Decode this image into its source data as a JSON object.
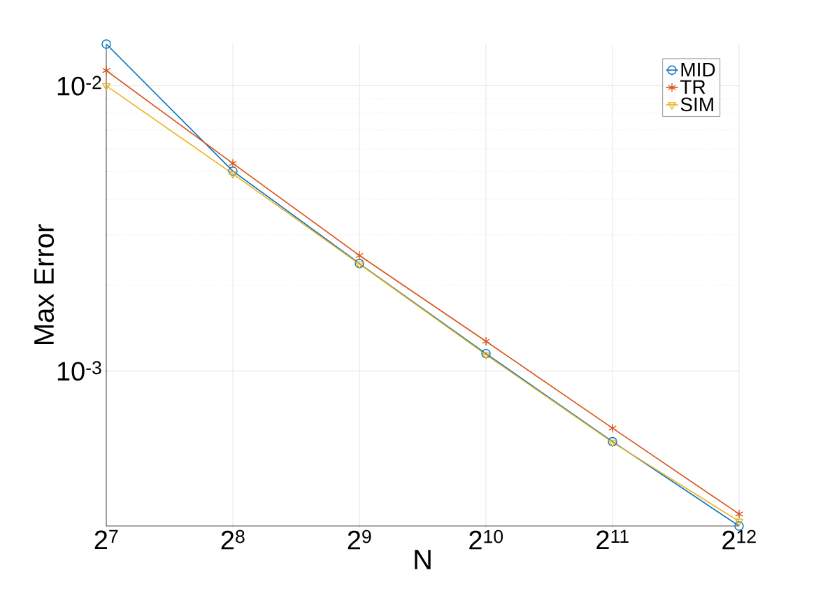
{
  "chart_data": {
    "type": "line",
    "xlabel": "N",
    "ylabel": "Max Error",
    "log": "xy",
    "grid": true,
    "legend": "top right",
    "line_style": "solid",
    "xlim": [
      128,
      4096
    ],
    "ylim": [
      0.000286,
      0.014
    ],
    "xticks": [
      {
        "value": 128,
        "label": "2$^{7}$"
      },
      {
        "value": 256,
        "label": "2$^{8}$"
      },
      {
        "value": 512,
        "label": "2$^{9}$"
      },
      {
        "value": 1024,
        "label": "2$^{10}$"
      },
      {
        "value": 2048,
        "label": "2$^{11}$"
      },
      {
        "value": 4096,
        "label": "2$^{12}$"
      }
    ],
    "yticks": [
      {
        "value": 0.001,
        "label": "10$^{-3}$"
      },
      {
        "value": 0.01,
        "label": "10$^{-2}$"
      }
    ],
    "x": [
      128,
      256,
      512,
      1024,
      2048,
      4096
    ],
    "series": [
      {
        "name": "MID",
        "color": "#0072bd",
        "marker": "circle",
        "values": [
          0.014,
          0.00502,
          0.00238,
          0.00115,
          0.000565,
          0.000286
        ]
      },
      {
        "name": "TR",
        "color": "#d95319",
        "marker": "cross",
        "values": [
          0.0113,
          0.00534,
          0.00254,
          0.00127,
          0.00063,
          0.000315
        ]
      },
      {
        "name": "SIM",
        "color": "#edb120",
        "marker": "triangle",
        "values": [
          0.01,
          0.00491,
          0.00237,
          0.00114,
          0.000562,
          0.000297
        ]
      }
    ]
  }
}
